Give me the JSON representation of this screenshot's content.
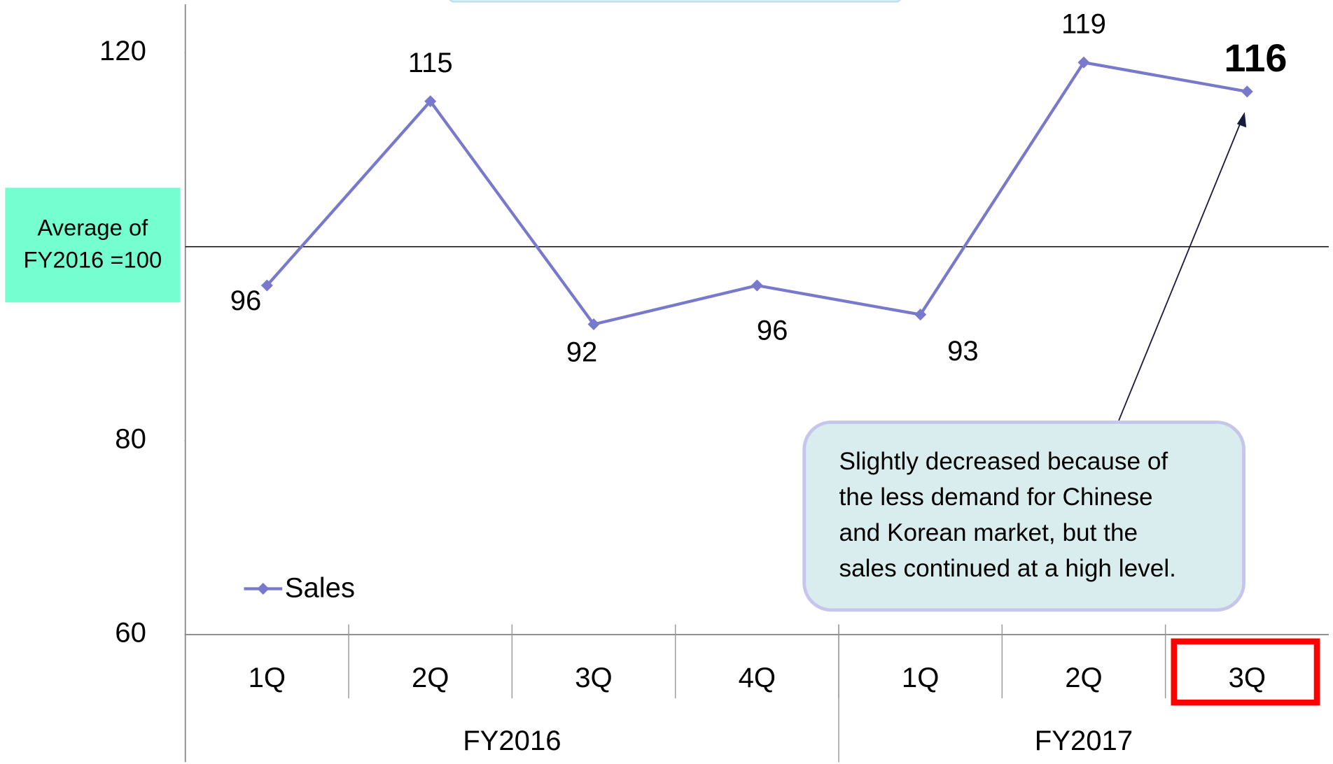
{
  "chart_data": {
    "type": "line",
    "categories": [
      "1Q",
      "2Q",
      "3Q",
      "4Q",
      "1Q",
      "2Q",
      "3Q"
    ],
    "groups": [
      {
        "name": "FY2016",
        "count": 4
      },
      {
        "name": "FY2017",
        "count": 3
      }
    ],
    "series": [
      {
        "name": "Sales",
        "color": "#7878cc",
        "values": [
          96,
          115,
          92,
          96,
          93,
          119,
          116
        ]
      }
    ],
    "ylim": [
      60,
      125
    ],
    "yticks": [
      60,
      80,
      120
    ],
    "reference_line": {
      "value": 100,
      "label": [
        "Average of",
        "FY2016 =100"
      ]
    },
    "callout": [
      "Slightly decreased because of",
      "the less demand for Chinese",
      "and Korean market, but the",
      "sales continued at a high level."
    ],
    "legend": "lower left",
    "highlight_category": 6
  }
}
